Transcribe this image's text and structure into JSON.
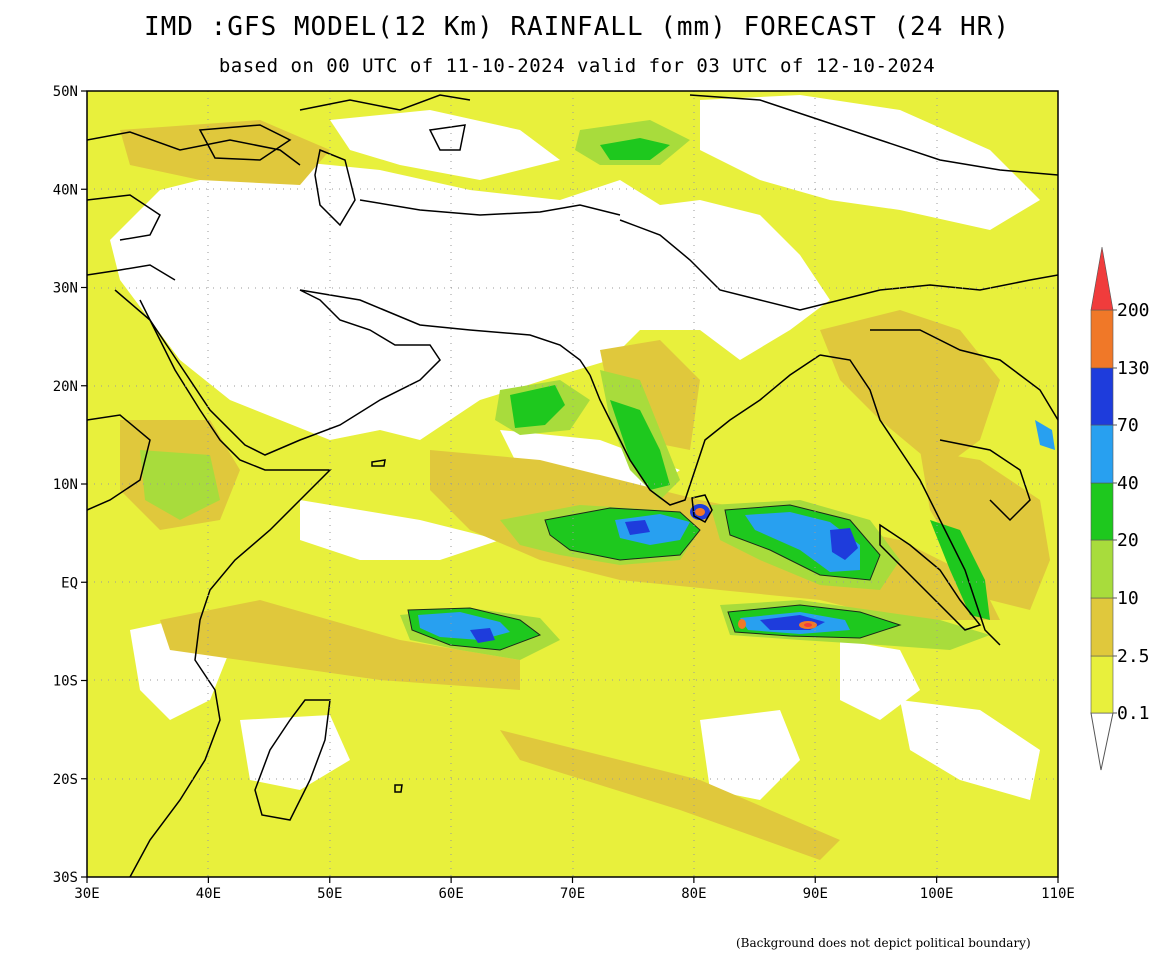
{
  "title": "IMD :GFS MODEL(12 Km) RAINFALL (mm) FORECAST (24 HR)",
  "subtitle": "based on 00 UTC of 11-10-2024 valid for 03 UTC of 12-10-2024",
  "footnote": "(Background does not depict political boundary)",
  "lat_ticks": [
    "50N",
    "40N",
    "30N",
    "20N",
    "10N",
    "EQ",
    "10S",
    "20S",
    "30S"
  ],
  "lon_ticks": [
    "30E",
    "40E",
    "50E",
    "60E",
    "70E",
    "80E",
    "90E",
    "100E",
    "110E"
  ],
  "legend": {
    "levels": [
      "0.1",
      "2.5",
      "10",
      "20",
      "40",
      "70",
      "130",
      "200"
    ],
    "colors": [
      "#ffffff",
      "#e8f03c",
      "#e0c83c",
      "#a8dc3c",
      "#1ec81e",
      "#28a0f0",
      "#1e3cdc",
      "#f07828",
      "#f03c3c"
    ]
  }
}
